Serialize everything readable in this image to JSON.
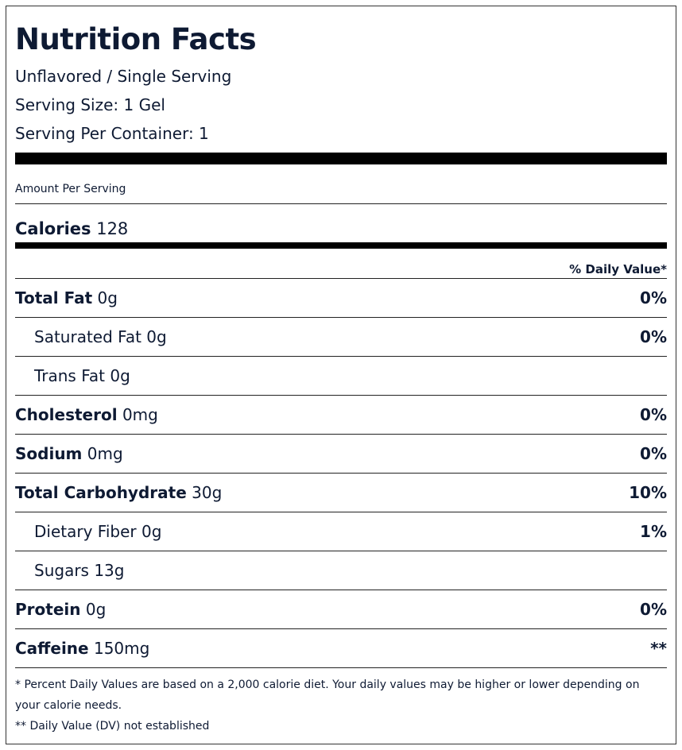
{
  "header": {
    "title": "Nutrition Facts",
    "variant": "Unflavored / Single Serving",
    "serving_size": "Serving Size: 1 Gel",
    "servings_per_container": "Serving Per Container: 1"
  },
  "amount_per_serving": "Amount Per Serving",
  "calories": {
    "label": "Calories",
    "value": 128
  },
  "daily_value_header": "% Daily Value*",
  "nutrients": [
    {
      "name": "Total Fat",
      "amount": "0g",
      "dv": "0%",
      "sub": [
        {
          "name": "Saturated Fat",
          "amount": "0g",
          "dv": "0%"
        },
        {
          "name": "Trans Fat",
          "amount": "0g"
        }
      ]
    },
    {
      "name": "Cholesterol",
      "amount": "0mg",
      "dv": "0%"
    },
    {
      "name": "Sodium",
      "amount": "0mg",
      "dv": "0%"
    },
    {
      "name": "Total Carbohydrate",
      "amount": "30g",
      "dv": "10%",
      "sub": [
        {
          "name": "Dietary Fiber",
          "amount": "0g",
          "dv": "1%"
        },
        {
          "name": "Sugars",
          "amount": "13g"
        }
      ]
    },
    {
      "name": "Protein",
      "amount": "0g",
      "dv": "0%"
    },
    {
      "name": "Caffeine",
      "amount": "150mg",
      "dv": "**"
    }
  ],
  "footnotes": [
    "* Percent Daily Values are based on a 2,000 calorie diet. Your daily values may be higher or lower depending on your calorie needs.",
    "** Daily Value (DV) not established"
  ]
}
